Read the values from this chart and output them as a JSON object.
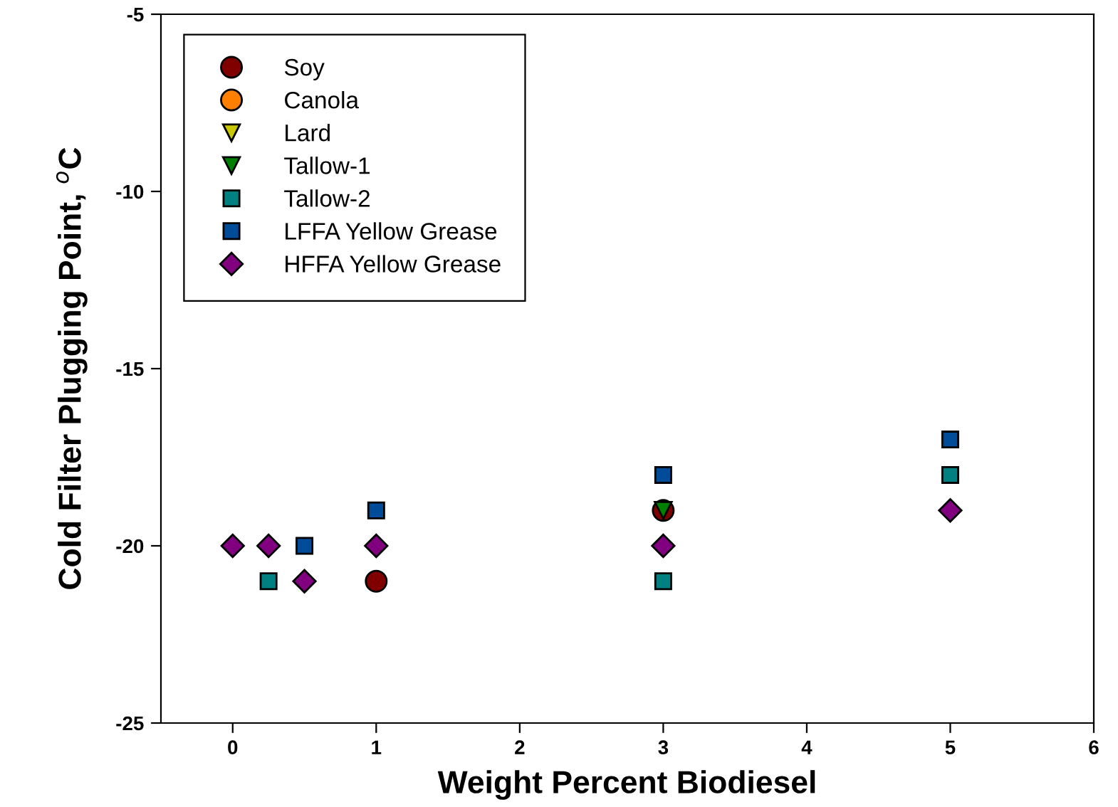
{
  "chart_data": {
    "type": "scatter",
    "xlabel": "Weight Percent Biodiesel",
    "ylabel": "Cold Filter Plugging Point, $^{o}$C",
    "xlim": [
      -0.5,
      6
    ],
    "xticks": [
      0,
      1,
      2,
      3,
      4,
      5,
      6
    ],
    "ylim": [
      -25,
      -5
    ],
    "yticks": [
      -25,
      -20,
      -15,
      -10,
      -5
    ],
    "grid": false,
    "legend": "top left",
    "series": [
      {
        "name": "Soy",
        "color": "#800000",
        "marker": "circle",
        "x": [
          1,
          3
        ],
        "values": [
          -21,
          -19
        ]
      },
      {
        "name": "Canola",
        "color": "#ff8000",
        "marker": "circle"
      },
      {
        "name": "Lard",
        "color": "#c8c800",
        "marker": "triangle"
      },
      {
        "name": "Tallow-1",
        "color": "#008000",
        "marker": "triangle",
        "x": [
          3
        ],
        "values": [
          -19
        ]
      },
      {
        "name": "Tallow-2",
        "color": "#008080",
        "marker": "square",
        "x": [
          0.25,
          3,
          5
        ],
        "values": [
          -21,
          -21,
          -18
        ]
      },
      {
        "name": "LFFA Yellow Grease",
        "color": "#004c99",
        "marker": "square",
        "x": [
          0.5,
          1,
          3,
          5
        ],
        "values": [
          -20,
          -19,
          -18,
          -17
        ]
      },
      {
        "name": "HFFA Yellow Grease",
        "color": "#800080",
        "marker": "diamond",
        "x": [
          0,
          0.25,
          0.5,
          1,
          3,
          5
        ],
        "values": [
          -20,
          -20,
          -21,
          -20,
          -20,
          -19
        ]
      }
    ]
  }
}
